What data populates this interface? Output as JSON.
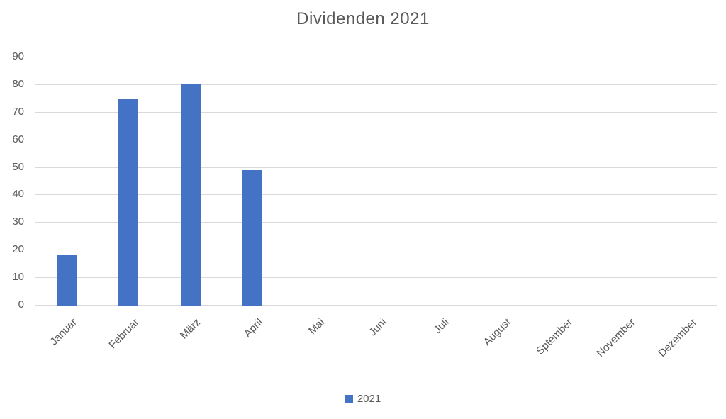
{
  "title": "Dividenden 2021",
  "legend": {
    "items": [
      {
        "label": "2021",
        "color": "#4472C4"
      }
    ]
  },
  "colors": {
    "bar": "#4472C4",
    "gridline": "#D9D9D9",
    "axis_text": "#595959",
    "title_text": "#595959"
  },
  "chart_data": {
    "type": "bar",
    "title": "Dividenden 2021",
    "categories": [
      "Januar",
      "Februar",
      "März",
      "April",
      "Mai",
      "Juni",
      "Juli",
      "August",
      "Sptember",
      "November",
      "Dezember"
    ],
    "series": [
      {
        "name": "2021",
        "color": "#4472C4",
        "values": [
          18.5,
          75,
          80.5,
          49,
          0,
          0,
          0,
          0,
          0,
          0,
          0
        ]
      }
    ],
    "xlabel": "",
    "ylabel": "",
    "ylim": [
      0,
      90
    ],
    "yticks": [
      0,
      10,
      20,
      30,
      40,
      50,
      60,
      70,
      80,
      90
    ],
    "grid": true,
    "legend_position": "bottom"
  }
}
